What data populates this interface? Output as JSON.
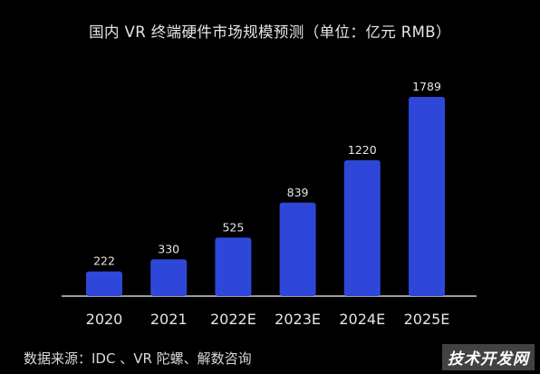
{
  "chart_data": {
    "type": "bar",
    "title": "国内 VR 终端硬件市场规模预测（单位：亿元 RMB）",
    "categories": [
      "2020",
      "2021",
      "2022E",
      "2023E",
      "2024E",
      "2025E"
    ],
    "values": [
      222,
      330,
      525,
      839,
      1220,
      1789
    ],
    "data_labels": [
      "222",
      "330",
      "525",
      "839",
      "1220",
      "1789"
    ],
    "xlabel": "",
    "ylabel": "",
    "ylim": [
      0,
      1789
    ],
    "grid": false,
    "bar_color": "#2f47d8"
  },
  "source": "数据来源：IDC 、VR 陀螺、解数咨询",
  "watermark": "技术开发网",
  "colors": {
    "background": "#000000",
    "bar": "#2f47d8",
    "axis": "#cfcfcf",
    "text": "#e6e6e6"
  }
}
